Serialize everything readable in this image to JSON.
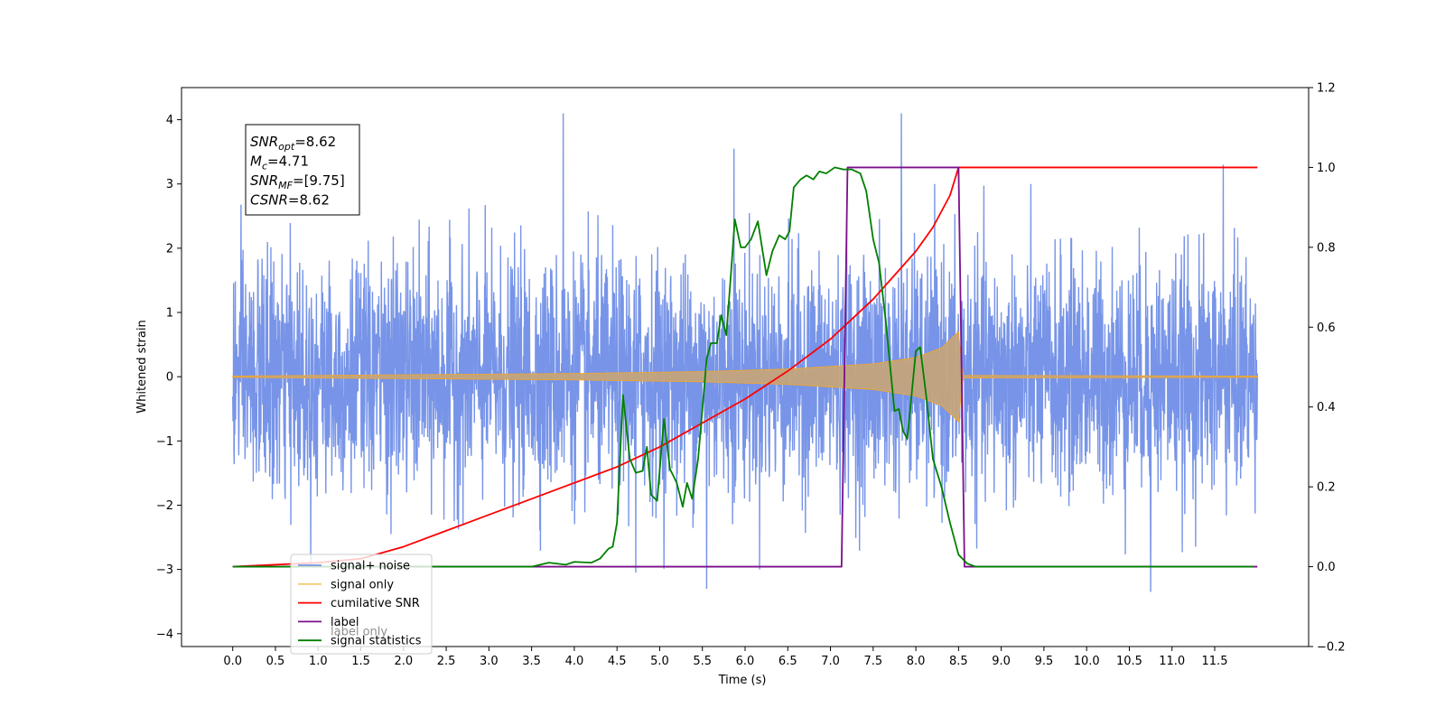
{
  "chart_data": {
    "type": "line",
    "xlabel": "Time (s)",
    "ylabel_left": "Whitened strain",
    "ylabel_right": "",
    "xlim": [
      -0.6,
      12.6
    ],
    "ylim_left": [
      -4.2,
      4.5
    ],
    "ylim_right": [
      -0.2,
      1.2
    ],
    "x_ticks": [
      "0.0",
      "0.5",
      "1.0",
      "1.5",
      "2.0",
      "2.5",
      "3.0",
      "3.5",
      "4.0",
      "4.5",
      "5.0",
      "5.5",
      "6.0",
      "6.5",
      "7.0",
      "7.5",
      "8.0",
      "8.5",
      "9.0",
      "9.5",
      "10.0",
      "10.5",
      "11.0",
      "11.5"
    ],
    "y_left_ticks": [
      "4",
      "3",
      "2",
      "1",
      "0",
      "−1",
      "−2",
      "−3",
      "−4"
    ],
    "y_right_ticks": [
      "1.2",
      "1.0",
      "0.8",
      "0.6",
      "0.4",
      "0.2",
      "0.0",
      "−0.2"
    ],
    "grid": false,
    "legend_position": "bottom-left",
    "annotation": [
      {
        "sym": "SNR",
        "sub": "opt",
        "val": "=8.62"
      },
      {
        "sym": "M",
        "sub": "c",
        "val": "=4.71"
      },
      {
        "sym": "SNR",
        "sub": "MF",
        "val": "=[9.75]"
      },
      {
        "sym": "CSNR",
        "sub": "",
        "val": "=8.62"
      }
    ],
    "series": [
      {
        "name": "signal+ noise",
        "axis": "left",
        "color": "#7794e8",
        "description_range": [
          0.0,
          12.0
        ],
        "noise_sigma": 1.0,
        "notable_peaks": [
          [
            3.87,
            4.1
          ],
          [
            7.83,
            4.1
          ],
          [
            5.87,
            3.55
          ],
          [
            11.6,
            3.3
          ],
          [
            10.75,
            -3.35
          ],
          [
            5.55,
            -3.3
          ],
          [
            4.72,
            -3.05
          ]
        ]
      },
      {
        "name": "signal only",
        "axis": "left",
        "color": "#f5a623",
        "envelope": [
          [
            0.0,
            0.01
          ],
          [
            2.0,
            0.03
          ],
          [
            4.0,
            0.05
          ],
          [
            5.5,
            0.08
          ],
          [
            6.5,
            0.12
          ],
          [
            7.5,
            0.2
          ],
          [
            8.0,
            0.3
          ],
          [
            8.3,
            0.45
          ],
          [
            8.5,
            0.7
          ],
          [
            8.55,
            0.02
          ],
          [
            12.0,
            0.01
          ]
        ]
      },
      {
        "name": "cumilative SNR",
        "axis": "right",
        "color": "#ff0000",
        "x": [
          0.0,
          1.0,
          1.5,
          2.0,
          2.5,
          3.0,
          3.5,
          4.0,
          4.5,
          5.0,
          5.5,
          6.0,
          6.5,
          7.0,
          7.5,
          8.0,
          8.2,
          8.4,
          8.5,
          8.55,
          12.0
        ],
        "y": [
          0.0,
          0.01,
          0.02,
          0.05,
          0.09,
          0.13,
          0.17,
          0.21,
          0.25,
          0.3,
          0.36,
          0.42,
          0.49,
          0.57,
          0.67,
          0.79,
          0.85,
          0.93,
          1.0,
          1.0,
          1.0
        ]
      },
      {
        "name": "label",
        "axis": "right",
        "color": "#7b0f8a",
        "x": [
          0.0,
          7.13,
          7.2,
          8.5,
          8.57,
          12.0
        ],
        "y": [
          0.0,
          0.0,
          1.0,
          1.0,
          0.0,
          0.0
        ]
      },
      {
        "name": "signal statistics",
        "axis": "right",
        "color": "#008000",
        "x": [
          0.0,
          0.5,
          1.0,
          1.5,
          2.0,
          2.5,
          3.0,
          3.5,
          3.7,
          3.9,
          4.0,
          4.2,
          4.3,
          4.4,
          4.45,
          4.5,
          4.57,
          4.65,
          4.72,
          4.8,
          4.85,
          4.9,
          4.97,
          5.05,
          5.12,
          5.2,
          5.27,
          5.32,
          5.38,
          5.45,
          5.55,
          5.6,
          5.67,
          5.72,
          5.78,
          5.83,
          5.88,
          5.95,
          6.0,
          6.07,
          6.15,
          6.25,
          6.32,
          6.4,
          6.47,
          6.52,
          6.57,
          6.65,
          6.72,
          6.8,
          6.87,
          6.95,
          7.05,
          7.15,
          7.25,
          7.35,
          7.42,
          7.5,
          7.57,
          7.65,
          7.75,
          7.8,
          7.85,
          7.9,
          7.95,
          8.0,
          8.05,
          8.12,
          8.2,
          8.3,
          8.4,
          8.5,
          8.6,
          8.7,
          9.0,
          10.0,
          11.0,
          11.0,
          11.95
        ],
        "y": [
          0.0,
          0.0,
          0.0,
          0.0,
          0.001,
          0.0,
          0.0,
          0.0,
          0.01,
          0.005,
          0.012,
          0.01,
          0.02,
          0.045,
          0.05,
          0.11,
          0.43,
          0.27,
          0.235,
          0.24,
          0.3,
          0.18,
          0.165,
          0.37,
          0.245,
          0.21,
          0.15,
          0.21,
          0.17,
          0.27,
          0.52,
          0.56,
          0.56,
          0.63,
          0.58,
          0.72,
          0.87,
          0.8,
          0.8,
          0.82,
          0.865,
          0.73,
          0.79,
          0.83,
          0.82,
          0.84,
          0.95,
          0.97,
          0.98,
          0.97,
          0.99,
          0.985,
          1.0,
          0.995,
          0.995,
          0.985,
          0.94,
          0.82,
          0.76,
          0.61,
          0.39,
          0.395,
          0.34,
          0.32,
          0.43,
          0.54,
          0.55,
          0.43,
          0.27,
          0.2,
          0.11,
          0.03,
          0.008,
          0.0,
          0.0,
          0.0,
          0.0,
          0.0,
          0.0
        ]
      }
    ]
  },
  "legend": {
    "items": [
      {
        "label": "signal+ noise",
        "color": "#7794e8"
      },
      {
        "label": "signal only",
        "color": "#f5c97a"
      },
      {
        "label": "cumilative SNR",
        "color": "#ff0000"
      },
      {
        "label": "label",
        "color": "#7b0f8a"
      },
      {
        "label": "signal statistics",
        "color": "#008000"
      }
    ],
    "hidden_label": "label only"
  }
}
